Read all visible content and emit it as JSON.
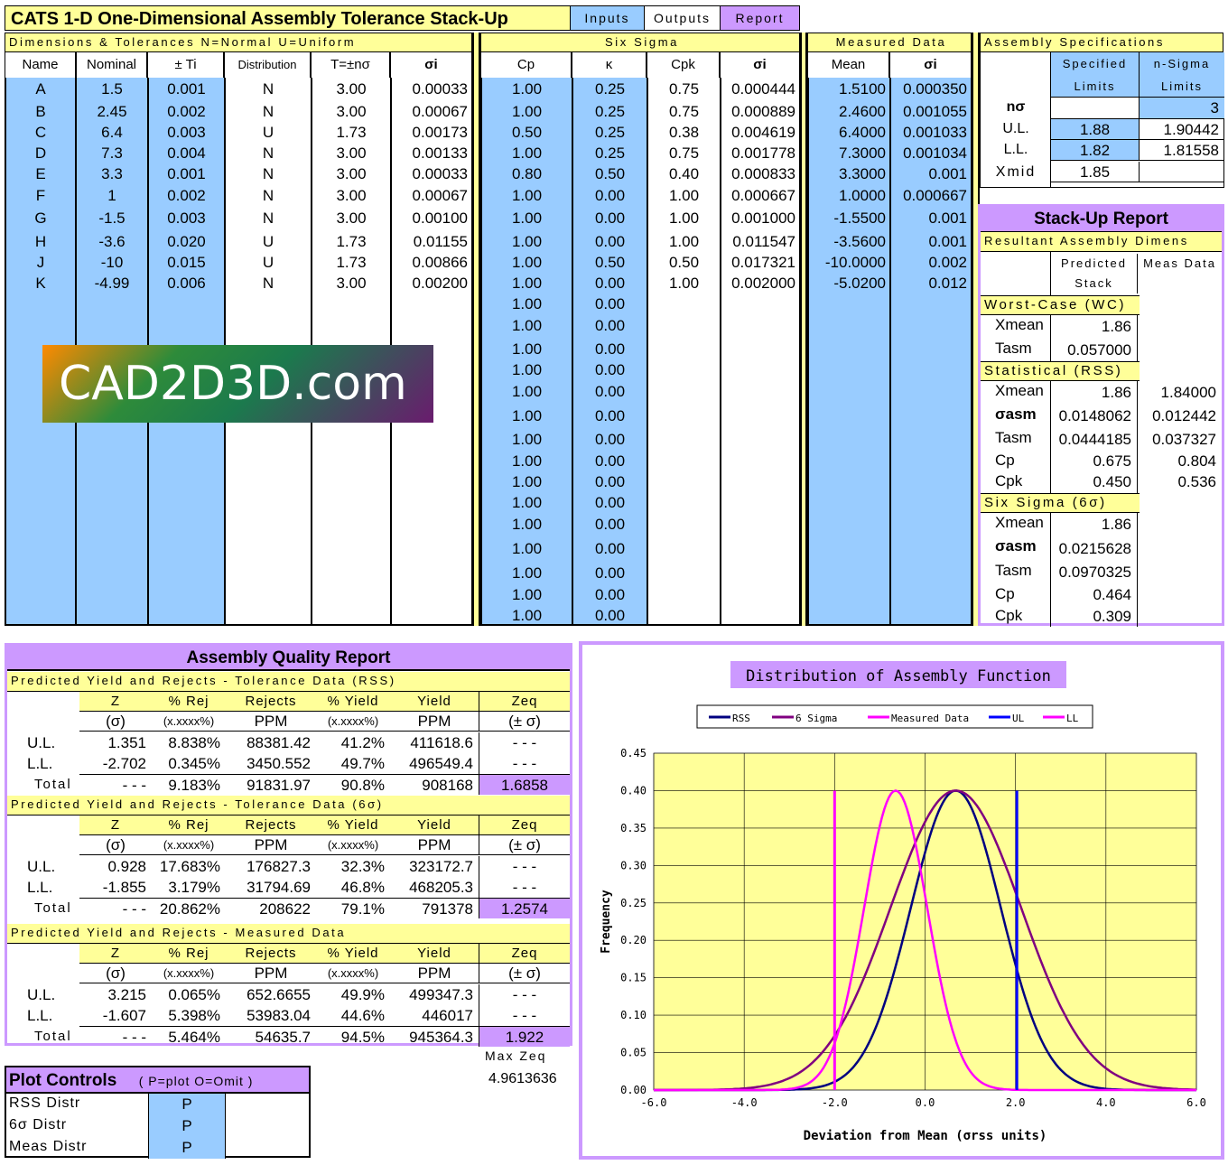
{
  "header": {
    "title": "CATS 1-D    One-Dimensional Assembly Tolerance Stack-Up",
    "tabs": [
      "Inputs",
      "Outputs",
      "Report"
    ]
  },
  "sections": {
    "dims": "Dimensions & Tolerances    N=Normal  U=Uniform",
    "sixsigma": "Six Sigma",
    "measured": "Measured Data",
    "assembly": "Assembly Specifications"
  },
  "columns": [
    "Name",
    "Nominal",
    "± Ti",
    "Distribution",
    "T=±nσ",
    "σi",
    "Cp",
    "κ",
    "Cpk",
    "σi",
    "Mean",
    "σi"
  ],
  "rows": [
    {
      "name": "A",
      "nominal": "1.5",
      "tol": "0.001",
      "dist": "N",
      "tn": "3.00",
      "sigma": "0.00033",
      "cp": "1.00",
      "k": "0.25",
      "cpk": "0.75",
      "ss_sigma": "0.000444",
      "mean": "1.5100",
      "m_sigma": "0.000350"
    },
    {
      "name": "B",
      "nominal": "2.45",
      "tol": "0.002",
      "dist": "N",
      "tn": "3.00",
      "sigma": "0.00067",
      "cp": "1.00",
      "k": "0.25",
      "cpk": "0.75",
      "ss_sigma": "0.000889",
      "mean": "2.4600",
      "m_sigma": "0.001055"
    },
    {
      "name": "C",
      "nominal": "6.4",
      "tol": "0.003",
      "dist": "U",
      "tn": "1.73",
      "sigma": "0.00173",
      "cp": "0.50",
      "k": "0.25",
      "cpk": "0.38",
      "ss_sigma": "0.004619",
      "mean": "6.4000",
      "m_sigma": "0.001033"
    },
    {
      "name": "D",
      "nominal": "7.3",
      "tol": "0.004",
      "dist": "N",
      "tn": "3.00",
      "sigma": "0.00133",
      "cp": "1.00",
      "k": "0.25",
      "cpk": "0.75",
      "ss_sigma": "0.001778",
      "mean": "7.3000",
      "m_sigma": "0.001034"
    },
    {
      "name": "E",
      "nominal": "3.3",
      "tol": "0.001",
      "dist": "N",
      "tn": "3.00",
      "sigma": "0.00033",
      "cp": "0.80",
      "k": "0.50",
      "cpk": "0.40",
      "ss_sigma": "0.000833",
      "mean": "3.3000",
      "m_sigma": "0.001"
    },
    {
      "name": "F",
      "nominal": "1",
      "tol": "0.002",
      "dist": "N",
      "tn": "3.00",
      "sigma": "0.00067",
      "cp": "1.00",
      "k": "0.00",
      "cpk": "1.00",
      "ss_sigma": "0.000667",
      "mean": "1.0000",
      "m_sigma": "0.000667"
    },
    {
      "name": "G",
      "nominal": "-1.5",
      "tol": "0.003",
      "dist": "N",
      "tn": "3.00",
      "sigma": "0.00100",
      "cp": "1.00",
      "k": "0.00",
      "cpk": "1.00",
      "ss_sigma": "0.001000",
      "mean": "-1.5500",
      "m_sigma": "0.001"
    },
    {
      "name": "H",
      "nominal": "-3.6",
      "tol": "0.020",
      "dist": "U",
      "tn": "1.73",
      "sigma": "0.01155",
      "cp": "1.00",
      "k": "0.00",
      "cpk": "1.00",
      "ss_sigma": "0.011547",
      "mean": "-3.5600",
      "m_sigma": "0.001"
    },
    {
      "name": "J",
      "nominal": "-10",
      "tol": "0.015",
      "dist": "U",
      "tn": "1.73",
      "sigma": "0.00866",
      "cp": "1.00",
      "k": "0.50",
      "cpk": "0.50",
      "ss_sigma": "0.017321",
      "mean": "-10.0000",
      "m_sigma": "0.002"
    },
    {
      "name": "K",
      "nominal": "-4.99",
      "tol": "0.006",
      "dist": "N",
      "tn": "3.00",
      "sigma": "0.00200",
      "cp": "1.00",
      "k": "0.00",
      "cpk": "1.00",
      "ss_sigma": "0.002000",
      "mean": "-5.0200",
      "m_sigma": "0.012"
    }
  ],
  "extra_rows": [
    {
      "cp": "1.00",
      "k": "0.00"
    },
    {
      "cp": "1.00",
      "k": "0.00"
    },
    {
      "cp": "1.00",
      "k": "0.00"
    },
    {
      "cp": "1.00",
      "k": "0.00"
    },
    {
      "cp": "1.00",
      "k": "0.00"
    },
    {
      "cp": "1.00",
      "k": "0.00"
    },
    {
      "cp": "1.00",
      "k": "0.00"
    },
    {
      "cp": "1.00",
      "k": "0.00"
    },
    {
      "cp": "1.00",
      "k": "0.00"
    },
    {
      "cp": "1.00",
      "k": "0.00"
    },
    {
      "cp": "1.00",
      "k": "0.00"
    },
    {
      "cp": "1.00",
      "k": "0.00"
    },
    {
      "cp": "1.00",
      "k": "0.00"
    },
    {
      "cp": "1.00",
      "k": "0.00"
    },
    {
      "cp": "1.00",
      "k": "0.00"
    }
  ],
  "watermark": "CAD2D3D.com",
  "assembly_spec": {
    "head_specified": "Specified Limits",
    "head_nsigma": "n-Sigma Limits",
    "n_label": "nσ",
    "n_value": "3",
    "ul_label": "U.L.",
    "ul_spec": "1.88",
    "ul_nsig": "1.90442",
    "ll_label": "L.L.",
    "ll_spec": "1.82",
    "ll_nsig": "1.81558",
    "xmid_label": "Xmid",
    "xmid_spec": "1.85"
  },
  "stack_report": {
    "title": "Stack-Up Report",
    "subtitle": "Resultant Assembly Dimens",
    "head_pred": "Predicted Stack",
    "head_meas": "Meas Data",
    "wc_title": "Worst-Case (WC)",
    "wc": [
      {
        "label": "Xmean",
        "pred": "1.86",
        "meas": ""
      },
      {
        "label": "Tasm",
        "pred": "0.057000",
        "meas": ""
      }
    ],
    "rss_title": "Statistical (RSS)",
    "rss": [
      {
        "label": "Xmean",
        "pred": "1.86",
        "meas": "1.84000"
      },
      {
        "label": "σasm",
        "pred": "0.0148062",
        "meas": "0.012442"
      },
      {
        "label": "Tasm",
        "pred": "0.0444185",
        "meas": "0.037327"
      },
      {
        "label": "Cp",
        "pred": "0.675",
        "meas": "0.804"
      },
      {
        "label": "Cpk",
        "pred": "0.450",
        "meas": "0.536"
      }
    ],
    "six_title": "Six Sigma (6σ)",
    "six": [
      {
        "label": "Xmean",
        "pred": "1.86",
        "meas": ""
      },
      {
        "label": "σasm",
        "pred": "0.0215628",
        "meas": ""
      },
      {
        "label": "Tasm",
        "pred": "0.0970325",
        "meas": ""
      },
      {
        "label": "Cp",
        "pred": "0.464",
        "meas": ""
      },
      {
        "label": "Cpk",
        "pred": "0.309",
        "meas": ""
      }
    ]
  },
  "quality": {
    "title": "Assembly Quality Report",
    "headers": [
      "Z",
      "% Rej",
      "Rejects",
      "% Yield",
      "Yield",
      "Zeq"
    ],
    "units": [
      "(σ)",
      "(x.xxxx%)",
      "PPM",
      "(x.xxxx%)",
      "PPM",
      "(± σ)"
    ],
    "blocks": [
      {
        "title": "Predicted Yield and Rejects - Tolerance Data (RSS)",
        "rows": [
          {
            "label": "U.L.",
            "z": "1.351",
            "rej": "8.838%",
            "ppm": "88381.42",
            "yld": "41.2%",
            "yppm": "411618.6",
            "zeq": "- - -"
          },
          {
            "label": "L.L.",
            "z": "-2.702",
            "rej": "0.345%",
            "ppm": "3450.552",
            "yld": "49.7%",
            "yppm": "496549.4",
            "zeq": "- - -"
          },
          {
            "label": "Total",
            "z": "- - -",
            "rej": "9.183%",
            "ppm": "91831.97",
            "yld": "90.8%",
            "yppm": "908168",
            "zeq": "1.6858"
          }
        ]
      },
      {
        "title": "Predicted Yield and Rejects - Tolerance Data  (6σ)",
        "rows": [
          {
            "label": "U.L.",
            "z": "0.928",
            "rej": "17.683%",
            "ppm": "176827.3",
            "yld": "32.3%",
            "yppm": "323172.7",
            "zeq": "- - -"
          },
          {
            "label": "L.L.",
            "z": "-1.855",
            "rej": "3.179%",
            "ppm": "31794.69",
            "yld": "46.8%",
            "yppm": "468205.3",
            "zeq": "- - -"
          },
          {
            "label": "Total",
            "z": "- - -",
            "rej": "20.862%",
            "ppm": "208622",
            "yld": "79.1%",
            "yppm": "791378",
            "zeq": "1.2574"
          }
        ]
      },
      {
        "title": "Predicted Yield and Rejects - Measured Data",
        "rows": [
          {
            "label": "U.L.",
            "z": "3.215",
            "rej": "0.065%",
            "ppm": "652.6655",
            "yld": "49.9%",
            "yppm": "499347.3",
            "zeq": "- - -"
          },
          {
            "label": "L.L.",
            "z": "-1.607",
            "rej": "5.398%",
            "ppm": "53983.04",
            "yld": "44.6%",
            "yppm": "446017",
            "zeq": "- - -"
          },
          {
            "label": "Total",
            "z": "- - -",
            "rej": "5.464%",
            "ppm": "54635.7",
            "yld": "94.5%",
            "yppm": "945364.3",
            "zeq": "1.922"
          }
        ]
      }
    ],
    "max_zeq_label": "Max Zeq",
    "max_zeq_value": "4.9613636"
  },
  "plot_controls": {
    "title": "Plot Controls",
    "hint": "( P=plot   O=Omit )",
    "rows": [
      {
        "label": "RSS Distr",
        "value": "P"
      },
      {
        "label": "6σ Distr",
        "value": "P"
      },
      {
        "label": "Meas Distr",
        "value": "P"
      }
    ]
  },
  "colors": {
    "rss": "#000080",
    "sixsigma": "#800080",
    "measured": "#ff00ff",
    "ul": "#0000ff",
    "ll": "#ff00ff",
    "accent_purple": "#cc99ff",
    "accent_yellow": "#ffff99",
    "accent_blue": "#99ccff"
  },
  "chart_data": {
    "type": "line",
    "title": "Distribution of Assembly Function",
    "xlabel": "Deviation from Mean (σrss units)",
    "ylabel": "Frequency",
    "xlim": [
      -6,
      6
    ],
    "ylim": [
      0,
      0.45
    ],
    "xticks": [
      "-6.0",
      "-4.0",
      "-2.0",
      "0.0",
      "2.0",
      "4.0",
      "6.0"
    ],
    "yticks": [
      "0.00",
      "0.05",
      "0.10",
      "0.15",
      "0.20",
      "0.25",
      "0.30",
      "0.35",
      "0.40",
      "0.45"
    ],
    "grid": true,
    "legend_position": "top",
    "series": [
      {
        "name": "RSS",
        "kind": "normal",
        "mean": 0.68,
        "sd": 1.0,
        "peak": 0.4
      },
      {
        "name": "6 Sigma",
        "kind": "normal",
        "mean": 0.68,
        "sd": 1.45,
        "peak": 0.4
      },
      {
        "name": "Measured Data",
        "kind": "normal",
        "mean": -0.65,
        "sd": 0.7,
        "peak": 0.4
      },
      {
        "name": "UL",
        "kind": "vline",
        "x": 2.03,
        "y": [
          0,
          0.4
        ]
      },
      {
        "name": "LL",
        "kind": "vline",
        "x": -2.0,
        "y": [
          0,
          0.4
        ]
      }
    ]
  }
}
